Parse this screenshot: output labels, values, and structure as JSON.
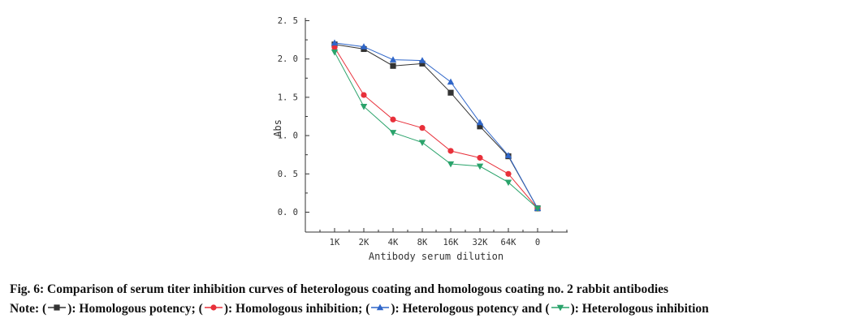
{
  "chart_data": {
    "type": "line",
    "categories": [
      "1K",
      "2K",
      "4K",
      "8K",
      "16K",
      "32K",
      "64K",
      "0"
    ],
    "xlabel": "Antibody serum dilution",
    "ylabel": "Abs",
    "ylim": [
      0,
      2.5
    ],
    "yticks": [
      "0. 0",
      "0. 5",
      "1. 0",
      "1. 5",
      "2. 0",
      "2. 5"
    ],
    "grid": false,
    "series": [
      {
        "key": "homologous_potency",
        "color": "#333333",
        "marker": "square",
        "values": [
          2.19,
          2.13,
          1.91,
          1.94,
          1.56,
          1.12,
          0.73,
          0.05
        ]
      },
      {
        "key": "homologous_inhibition",
        "color": "#e8303a",
        "marker": "circle",
        "values": [
          2.15,
          1.53,
          1.21,
          1.1,
          0.8,
          0.71,
          0.5,
          0.05
        ]
      },
      {
        "key": "heterologous_potency",
        "color": "#2f66c9",
        "marker": "triangle-up",
        "values": [
          2.21,
          2.16,
          1.99,
          1.98,
          1.7,
          1.17,
          0.74,
          0.05
        ]
      },
      {
        "key": "heterologous_inhibition",
        "color": "#2aa36b",
        "marker": "triangle-down",
        "values": [
          2.09,
          1.38,
          1.04,
          0.91,
          0.63,
          0.6,
          0.39,
          0.05
        ]
      }
    ]
  },
  "caption": {
    "title": "Fig. 6: Comparison of serum titer inhibition curves of heterologous coating and homologous coating no. 2 rabbit antibodies",
    "note_prefix": "Note: (",
    "item1": "): Homologous potency; (",
    "item2": "): Homologous inhibition; (",
    "item3": "): Heterologous potency and (",
    "item4": "): Heterologous inhibition"
  }
}
